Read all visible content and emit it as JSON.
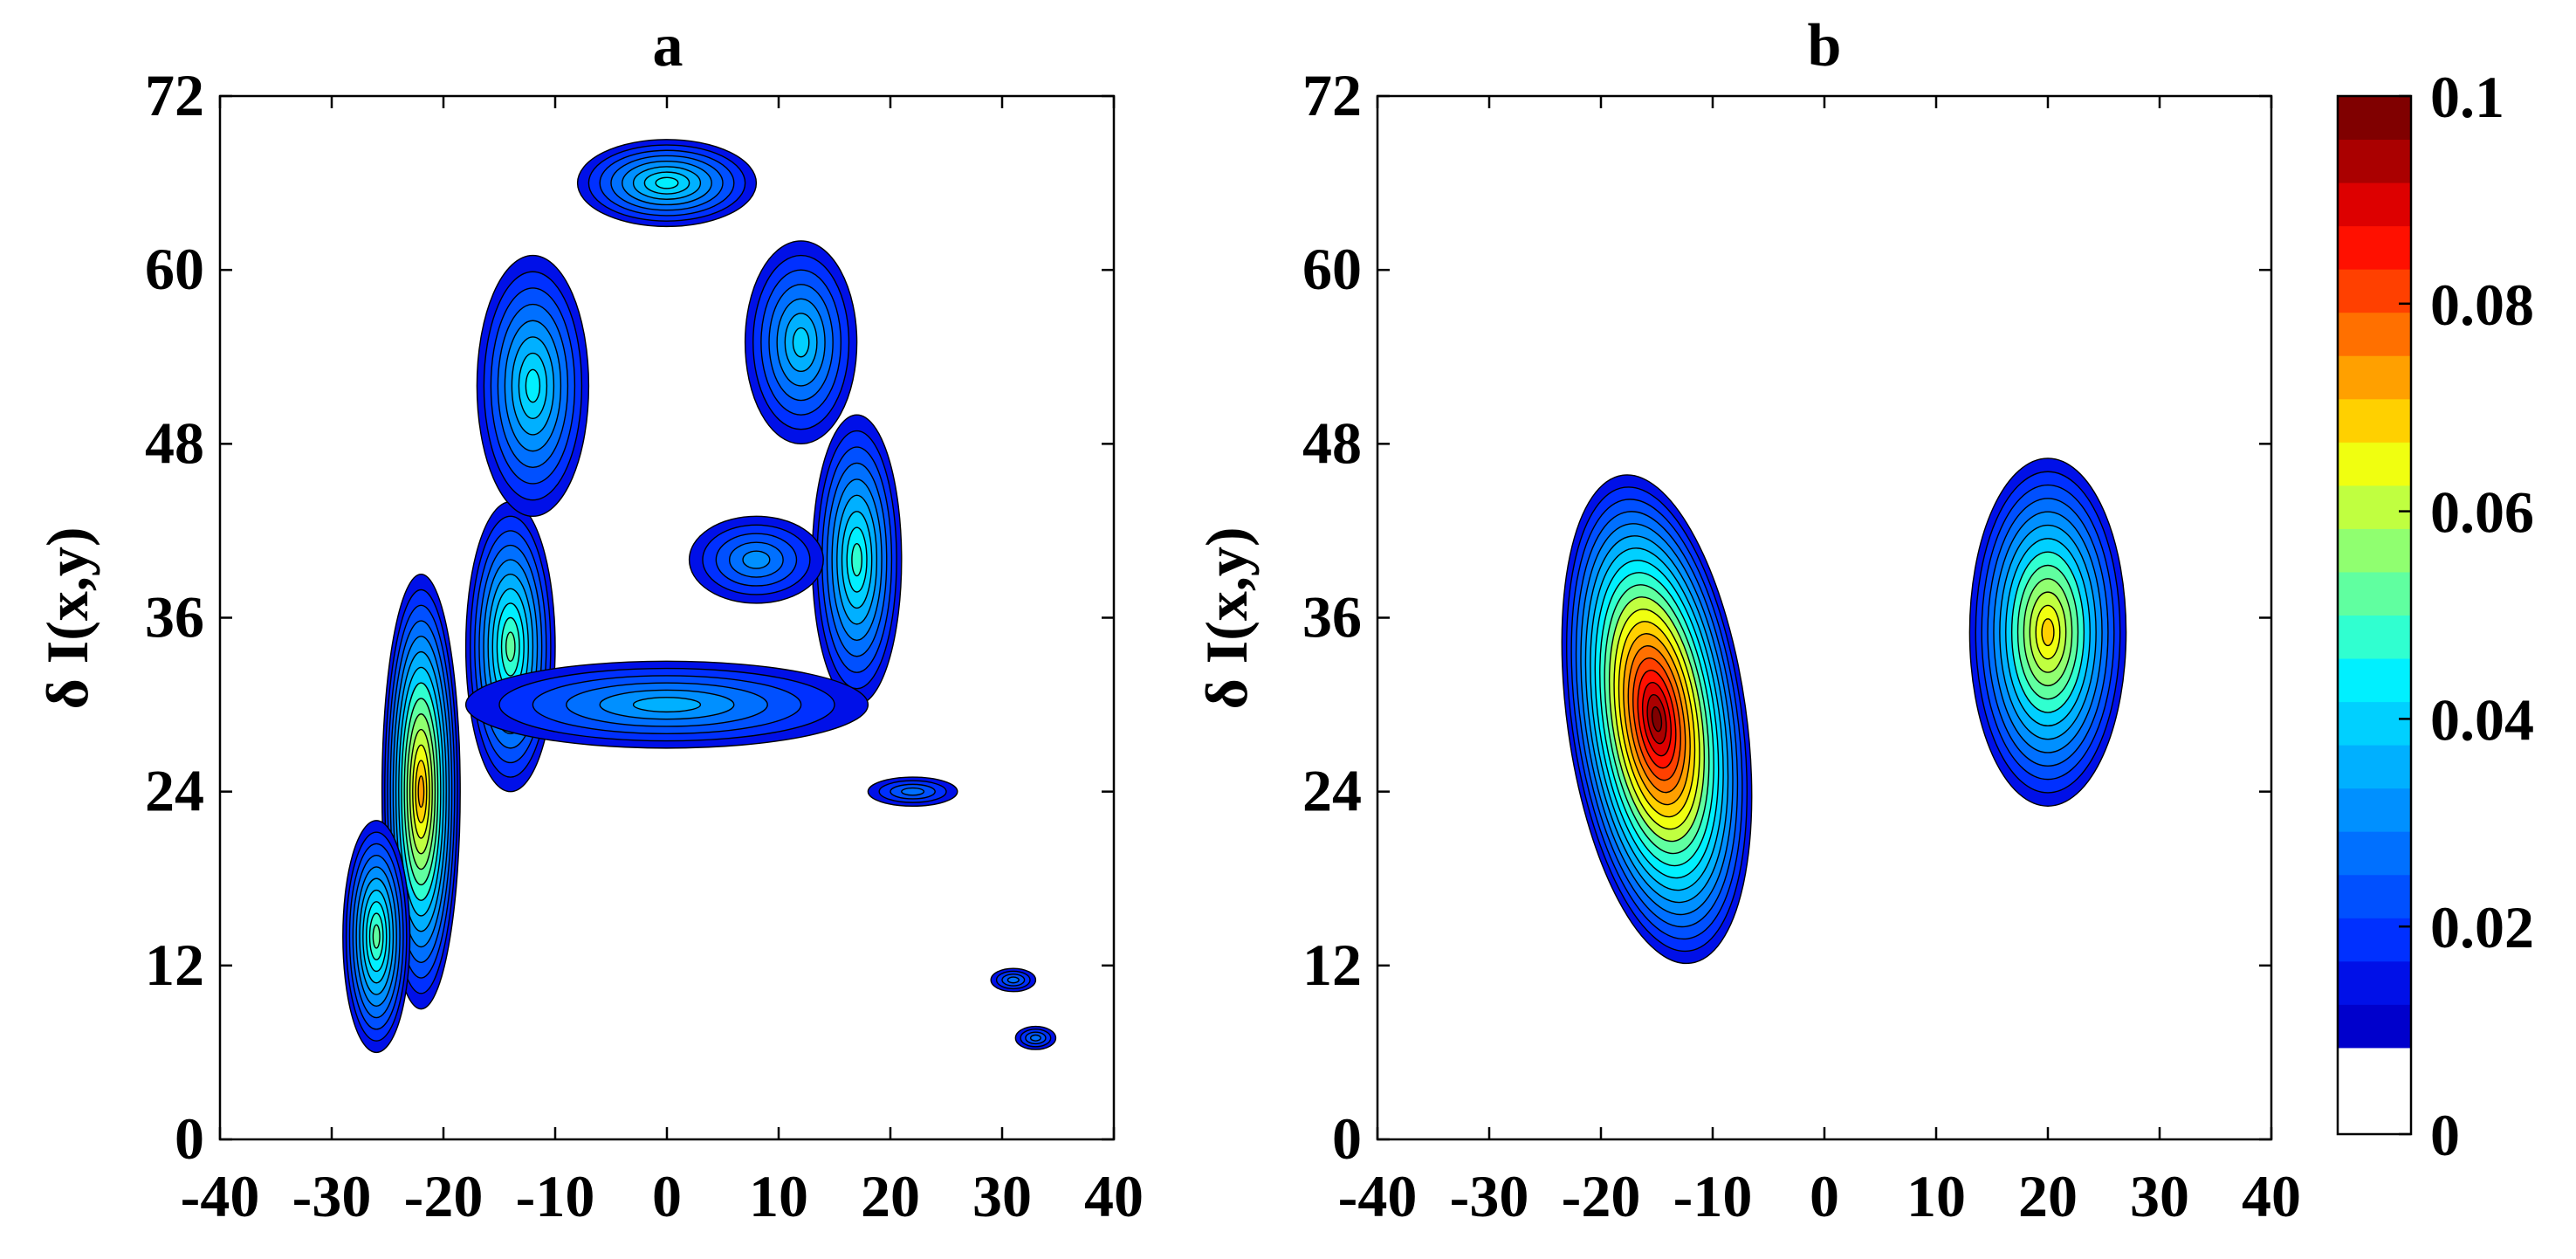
{
  "chart_data": [
    {
      "type": "contour",
      "title": "a",
      "xlabel": "",
      "ylabel": "δ I(x,y)",
      "xlim": [
        -40,
        40
      ],
      "ylim": [
        0,
        72
      ],
      "xticks": [
        "-40",
        "-30",
        "-20",
        "-10",
        "0",
        "10",
        "20",
        "30",
        "40"
      ],
      "yticks": [
        "0",
        "12",
        "24",
        "36",
        "48",
        "60",
        "72"
      ],
      "color_range": [
        0,
        0.1
      ],
      "levels": 20,
      "blobs": [
        {
          "cx": -22,
          "cy": 24,
          "rx": 3.5,
          "ry": 15,
          "peak": 0.072
        },
        {
          "cx": -26,
          "cy": 14,
          "rx": 3,
          "ry": 8,
          "peak": 0.05
        },
        {
          "cx": -14,
          "cy": 34,
          "rx": 4,
          "ry": 10,
          "peak": 0.05
        },
        {
          "cx": -12,
          "cy": 52,
          "rx": 5,
          "ry": 9,
          "peak": 0.04
        },
        {
          "cx": 0,
          "cy": 66,
          "rx": 8,
          "ry": 3,
          "peak": 0.038
        },
        {
          "cx": 12,
          "cy": 55,
          "rx": 5,
          "ry": 7,
          "peak": 0.036
        },
        {
          "cx": 17,
          "cy": 40,
          "rx": 4,
          "ry": 10,
          "peak": 0.045
        },
        {
          "cx": 0,
          "cy": 30,
          "rx": 18,
          "ry": 3,
          "peak": 0.03
        },
        {
          "cx": 8,
          "cy": 40,
          "rx": 6,
          "ry": 3,
          "peak": 0.025
        },
        {
          "cx": 31,
          "cy": 11,
          "rx": 2,
          "ry": 0.8,
          "peak": 0.02
        },
        {
          "cx": 33,
          "cy": 7,
          "rx": 1.8,
          "ry": 0.8,
          "peak": 0.02
        },
        {
          "cx": 22,
          "cy": 24,
          "rx": 4,
          "ry": 1,
          "peak": 0.02
        }
      ]
    },
    {
      "type": "contour",
      "title": "b",
      "xlabel": "",
      "ylabel": "δ I(x,y)",
      "xlim": [
        -40,
        40
      ],
      "ylim": [
        0,
        72
      ],
      "xticks": [
        "-40",
        "-30",
        "-20",
        "-10",
        "0",
        "10",
        "20",
        "30",
        "40"
      ],
      "yticks": [
        "0",
        "12",
        "24",
        "36",
        "48",
        "60",
        "72"
      ],
      "color_range": [
        0,
        0.1
      ],
      "levels": 20,
      "blobs": [
        {
          "cx": -15,
          "cy": 29,
          "rx": 8,
          "ry": 17,
          "peak": 0.1
        },
        {
          "cx": 20,
          "cy": 35,
          "rx": 7,
          "ry": 12,
          "peak": 0.067
        }
      ]
    }
  ],
  "colorbar": {
    "ticks": [
      "0",
      "0.02",
      "0.04",
      "0.06",
      "0.08",
      "0.1"
    ],
    "tick_values": [
      0,
      0.02,
      0.04,
      0.06,
      0.08,
      0.1
    ],
    "colors": [
      "#ffffff",
      "#0000cc",
      "#0010e8",
      "#0030ff",
      "#0050ff",
      "#0070ff",
      "#0090ff",
      "#00b0ff",
      "#00d0ff",
      "#00f0ff",
      "#30ffd0",
      "#60ffa0",
      "#90ff70",
      "#c0ff40",
      "#f0ff10",
      "#ffd000",
      "#ffa000",
      "#ff7000",
      "#ff4000",
      "#ff1000",
      "#dd0000",
      "#aa0000",
      "#800000"
    ]
  }
}
